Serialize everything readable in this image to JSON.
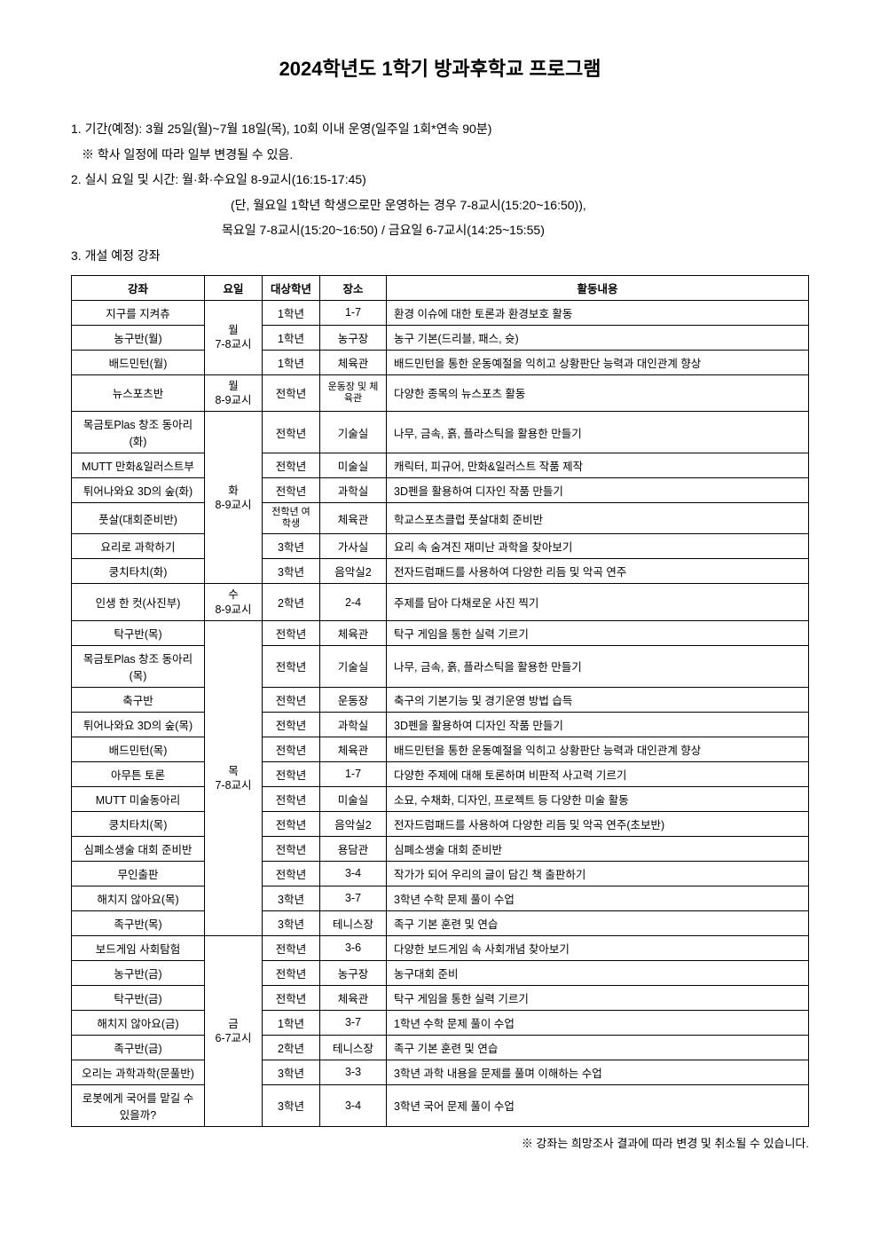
{
  "title": "2024학년도 1학기 방과후학교 프로그램",
  "info": {
    "line1": "1. 기간(예정): 3월 25일(월)~7월 18일(목), 10회 이내 운영(일주일 1회*연속 90분)",
    "line1_note": "※ 학사 일정에 따라 일부 변경될 수 있음.",
    "line2": "2. 실시 요일 및 시간: 월·화·수요일 8-9교시(16:15-17:45)",
    "line2_sub1": "(단, 월요일 1학년 학생으로만 운영하는 경우 7-8교시(15:20~16:50)),",
    "line2_sub2": "목요일 7-8교시(15:20~16:50) / 금요일 6-7교시(14:25~15:55)",
    "line3": "3. 개설 예정 강좌"
  },
  "headers": {
    "course": "강좌",
    "day": "요일",
    "grade": "대상학년",
    "place": "장소",
    "activity": "활동내용"
  },
  "days": {
    "mon78": "월\n7-8교시",
    "mon89": "월\n8-9교시",
    "tue89": "화\n8-9교시",
    "wed89": "수\n8-9교시",
    "thu78": "목\n7-8교시",
    "fri67": "금\n6-7교시"
  },
  "rows": [
    {
      "course": "지구를 지켜츄",
      "grade": "1학년",
      "place": "1-7",
      "activity": "환경 이슈에 대한 토론과 환경보호 활동"
    },
    {
      "course": "농구반(월)",
      "grade": "1학년",
      "place": "농구장",
      "activity": "농구 기본(드리블, 패스, 슛)"
    },
    {
      "course": "배드민턴(월)",
      "grade": "1학년",
      "place": "체육관",
      "activity": "배드민턴을 통한 운동예절을 익히고 상황판단 능력과 대인관계 향상"
    },
    {
      "course": "뉴스포츠반",
      "grade": "전학년",
      "place": "운동장 및 체육관",
      "activity": "다양한 종목의 뉴스포츠 활동"
    },
    {
      "course": "목금토Plas 창조 동아리(화)",
      "grade": "전학년",
      "place": "기술실",
      "activity": "나무, 금속, 흙, 플라스틱을 활용한 만들기"
    },
    {
      "course": "MUTT 만화&일러스트부",
      "grade": "전학년",
      "place": "미술실",
      "activity": "캐릭터, 피규어, 만화&일러스트 작품 제작"
    },
    {
      "course": "튀어나와요 3D의 숲(화)",
      "grade": "전학년",
      "place": "과학실",
      "activity": "3D펜을 활용하여 디자인 작품 만들기"
    },
    {
      "course": "풋살(대회준비반)",
      "grade": "전학년 여학생",
      "place": "체육관",
      "activity": "학교스포츠클럽 풋살대회 준비반"
    },
    {
      "course": "요리로 과학하기",
      "grade": "3학년",
      "place": "가사실",
      "activity": "요리 속 숨겨진 재미난 과학을 찾아보기"
    },
    {
      "course": "쿵치타치(화)",
      "grade": "3학년",
      "place": "음악실2",
      "activity": "전자드럼패드를 사용하여 다양한 리듬 및 악곡 연주"
    },
    {
      "course": "인생 한 컷(사진부)",
      "grade": "2학년",
      "place": "2-4",
      "activity": "주제를 담아 다채로운 사진 찍기"
    },
    {
      "course": "탁구반(목)",
      "grade": "전학년",
      "place": "체육관",
      "activity": "탁구 게임을 통한 실력 기르기"
    },
    {
      "course": "목금토Plas 창조 동아리(목)",
      "grade": "전학년",
      "place": "기술실",
      "activity": "나무, 금속, 흙, 플라스틱을 활용한 만들기"
    },
    {
      "course": "축구반",
      "grade": "전학년",
      "place": "운동장",
      "activity": "축구의 기본기능 및 경기운영 방법 습득"
    },
    {
      "course": "튀어나와요 3D의 숲(목)",
      "grade": "전학년",
      "place": "과학실",
      "activity": "3D펜을 활용하여 디자인 작품 만들기"
    },
    {
      "course": "배드민턴(목)",
      "grade": "전학년",
      "place": "체육관",
      "activity": "배드민턴을 통한 운동예절을 익히고 상황판단 능력과 대인관계 향상"
    },
    {
      "course": "아무튼 토론",
      "grade": "전학년",
      "place": "1-7",
      "activity": "다양한 주제에 대해 토론하며 비판적 사고력 기르기"
    },
    {
      "course": "MUTT 미술동아리",
      "grade": "전학년",
      "place": "미술실",
      "activity": "소묘, 수채화, 디자인, 프로젝트 등 다양한 미술 활동"
    },
    {
      "course": "쿵치타치(목)",
      "grade": "전학년",
      "place": "음악실2",
      "activity": "전자드럼패드를 사용하여 다양한 리듬 및 악곡 연주(초보반)"
    },
    {
      "course": "심폐소생술 대회 준비반",
      "grade": "전학년",
      "place": "용담관",
      "activity": "심폐소생술 대회 준비반"
    },
    {
      "course": "무인출판",
      "grade": "전학년",
      "place": "3-4",
      "activity": "작가가 되어 우리의 글이 담긴 책 출판하기"
    },
    {
      "course": "해치지 않아요(목)",
      "grade": "3학년",
      "place": "3-7",
      "activity": "3학년 수학 문제 풀이 수업"
    },
    {
      "course": "족구반(목)",
      "grade": "3학년",
      "place": "테니스장",
      "activity": "족구 기본 훈련 및 연습"
    },
    {
      "course": "보드게임 사회탐험",
      "grade": "전학년",
      "place": "3-6",
      "activity": "다양한 보드게임 속 사회개념 찾아보기"
    },
    {
      "course": "농구반(금)",
      "grade": "전학년",
      "place": "농구장",
      "activity": "농구대회 준비"
    },
    {
      "course": "탁구반(금)",
      "grade": "전학년",
      "place": "체육관",
      "activity": "탁구 게임을 통한 실력 기르기"
    },
    {
      "course": "해치지 않아요(금)",
      "grade": "1학년",
      "place": "3-7",
      "activity": "1학년 수학 문제 풀이 수업"
    },
    {
      "course": "족구반(금)",
      "grade": "2학년",
      "place": "테니스장",
      "activity": "족구 기본 훈련 및 연습"
    },
    {
      "course": "오리는 과학과학(문풀반)",
      "grade": "3학년",
      "place": "3-3",
      "activity": "3학년 과학 내용을 문제를 풀며 이해하는 수업"
    },
    {
      "course": "로봇에게 국어를 맡길 수 있을까?",
      "grade": "3학년",
      "place": "3-4",
      "activity": "3학년 국어 문제 풀이 수업"
    }
  ],
  "footnote": "※ 강좌는 희망조사 결과에 따라 변경 및 취소될 수 있습니다."
}
